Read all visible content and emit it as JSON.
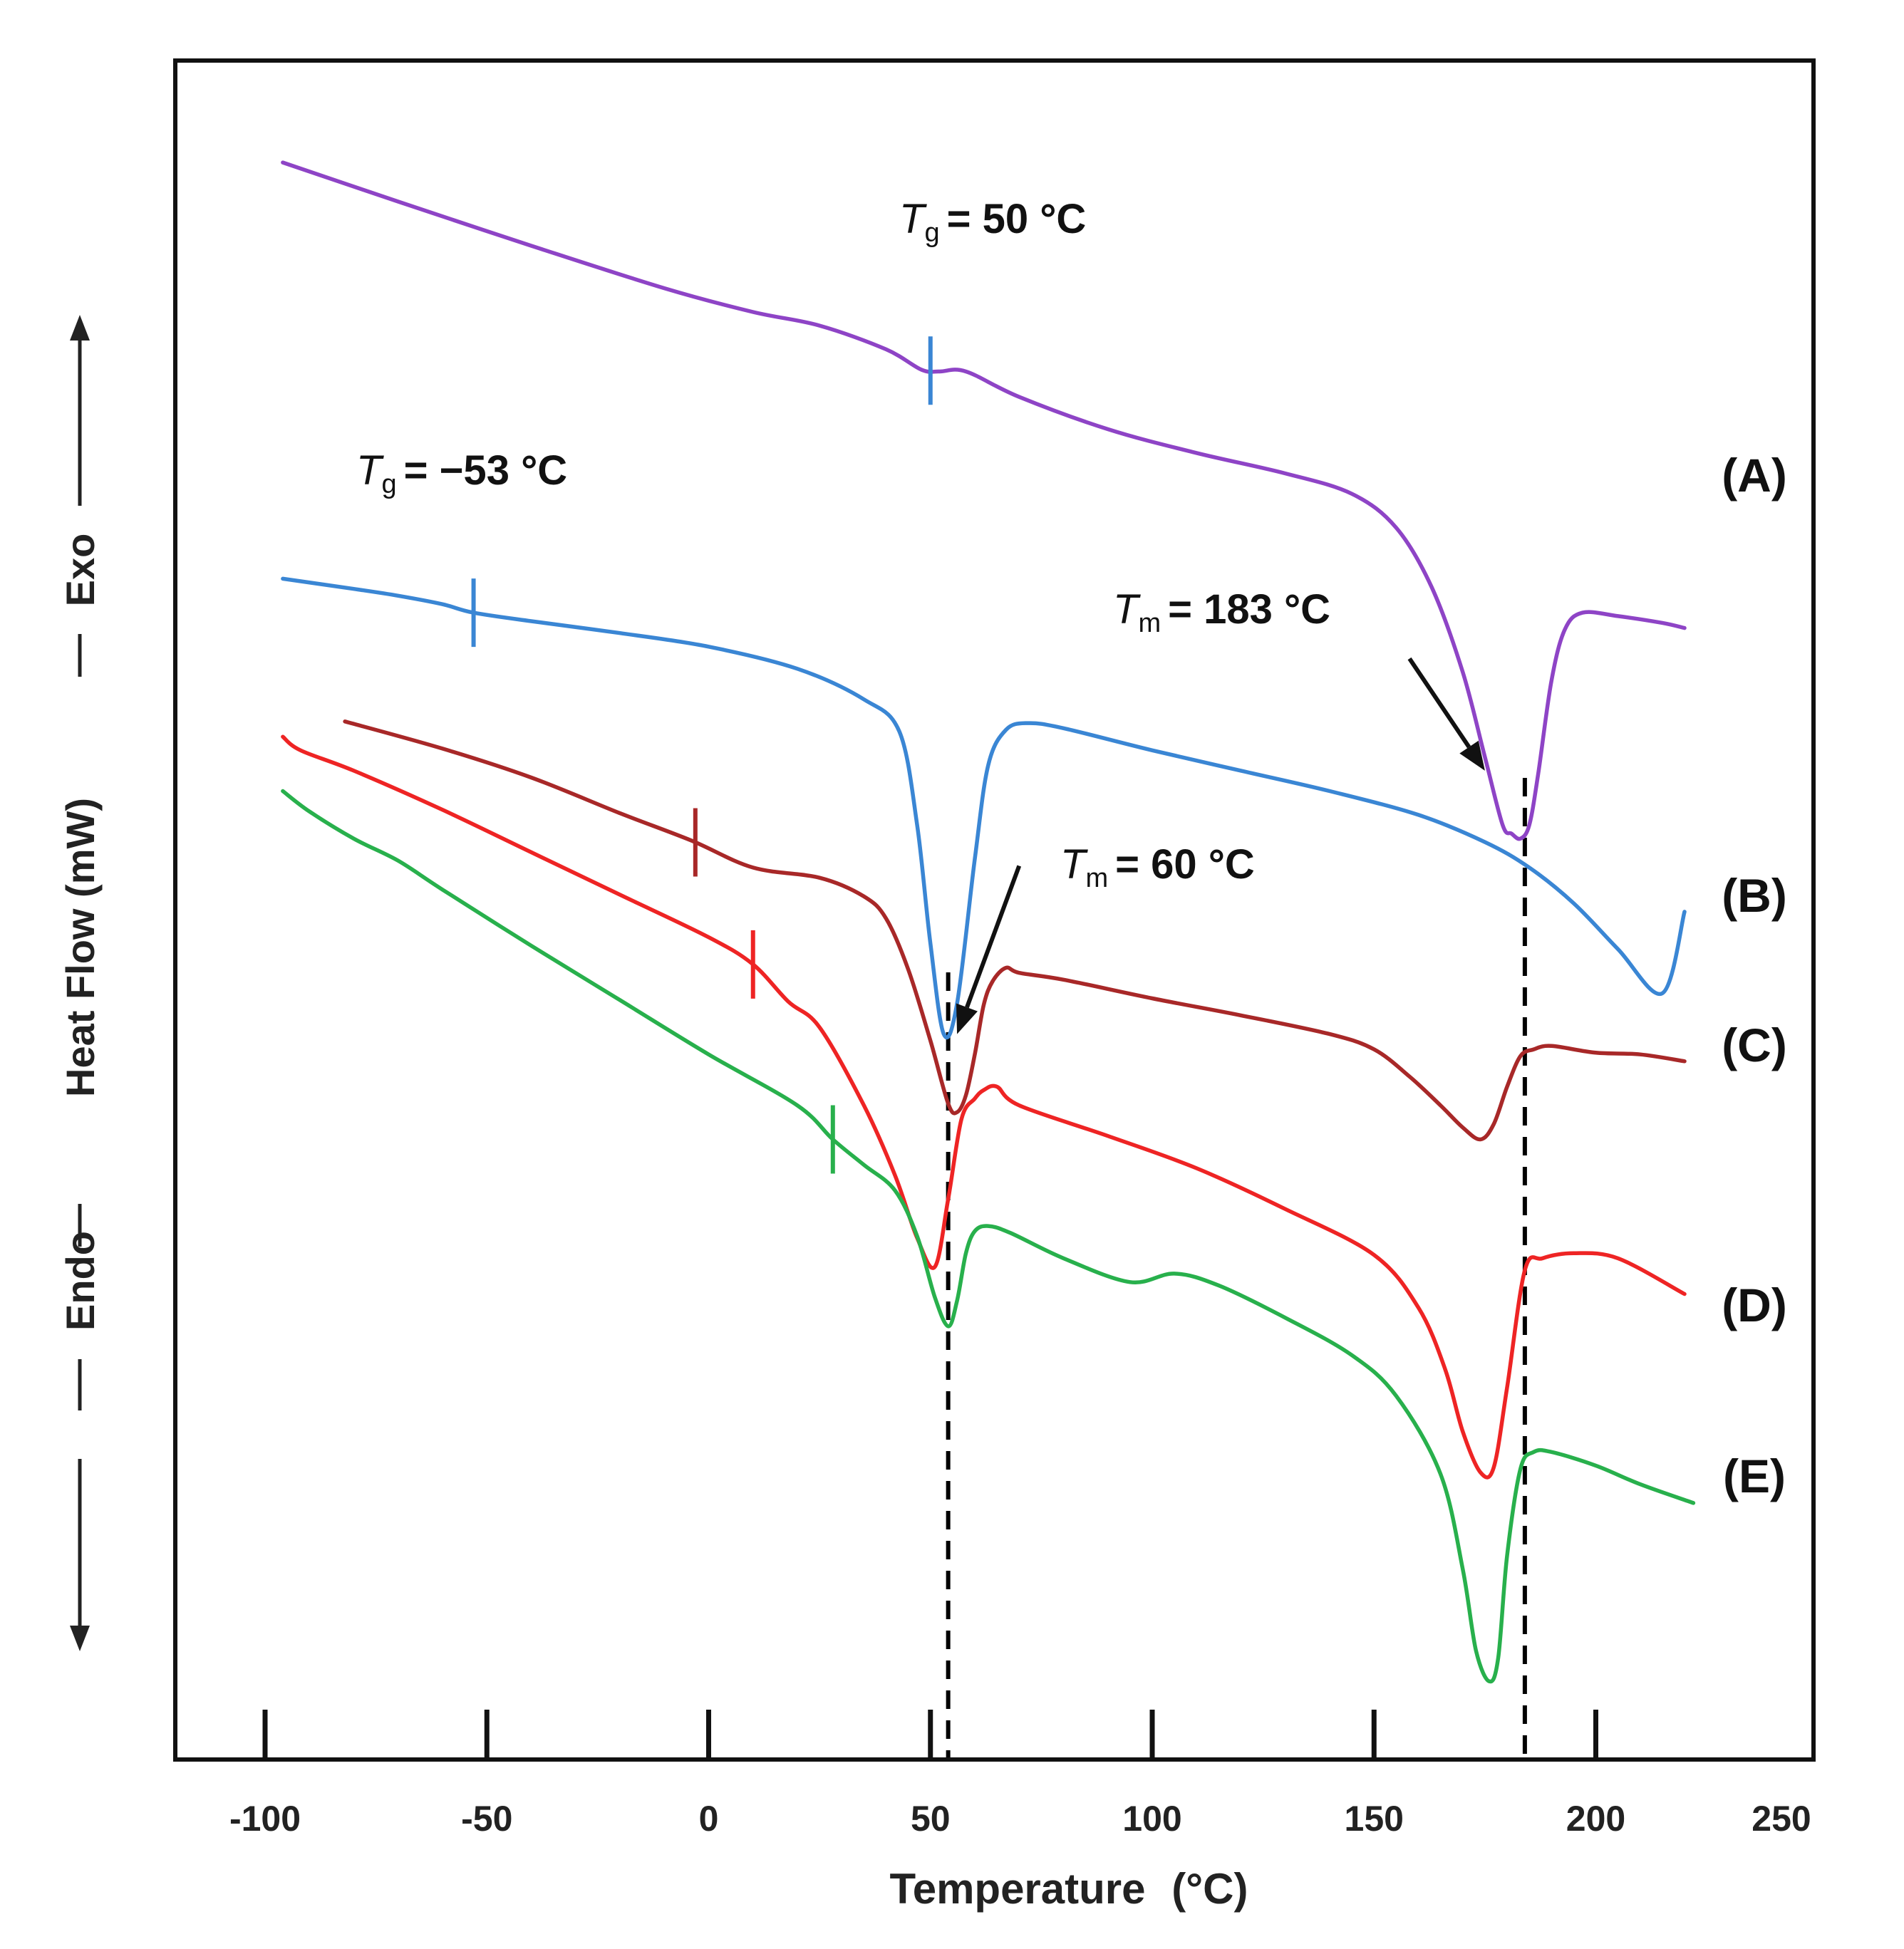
{
  "chart_data": {
    "type": "line",
    "title": "",
    "xlabel": "Temperature",
    "xlabel_unit": "(°C)",
    "ylabel": "Heat Flow (mW)",
    "ylabel_endo": "Endo",
    "ylabel_exo": "Exo",
    "xlim": [
      -120,
      250
    ],
    "xticks": [
      -100,
      -50,
      0,
      50,
      100,
      150,
      200,
      250
    ],
    "ylim": [
      0,
      100
    ],
    "grid": false,
    "y_ticks_shown": false,
    "series": [
      {
        "name": "(A)",
        "color": "#8e44c6",
        "x": [
          -96,
          -70,
          -40,
          -10,
          10,
          25,
          40,
          48,
          52,
          58,
          70,
          90,
          110,
          130,
          145,
          155,
          163,
          170,
          175,
          179,
          181,
          183,
          185,
          187,
          190,
          193,
          197,
          205,
          215,
          220
        ],
        "y": [
          94,
          91.7,
          89.1,
          86.6,
          85.2,
          84.4,
          83,
          81.8,
          81.7,
          81.7,
          80.2,
          78.3,
          76.9,
          75.7,
          74.5,
          72.5,
          69,
          64,
          59,
          55,
          54.5,
          54.2,
          55,
          58,
          63.5,
          66.5,
          67.5,
          67.3,
          66.9,
          66.6
        ],
        "tg": 50,
        "tg_color": "#3a86d4",
        "tg_label": "= 50 °C",
        "tg_symbol": "T",
        "tg_sub": "g"
      },
      {
        "name": "(B)",
        "color": "#3a86d4",
        "x": [
          -96,
          -80,
          -70,
          -60,
          -53,
          -40,
          -20,
          0,
          20,
          35,
          43,
          47,
          50,
          53,
          56,
          60,
          63,
          67,
          72,
          80,
          100,
          120,
          140,
          160,
          175,
          185,
          195,
          205,
          215,
          220
        ],
        "y": [
          69.5,
          68.9,
          68.5,
          68,
          67.5,
          67,
          66.3,
          65.5,
          64.2,
          62.4,
          60.5,
          55,
          48,
          42.7,
          44.5,
          53,
          58.5,
          60.6,
          61,
          60.7,
          59.4,
          58.2,
          57,
          55.6,
          54,
          52.5,
          50.4,
          47.7,
          45.1,
          49.9
        ],
        "tg": -53,
        "tg_color": "#3a86d4",
        "tg_label": "= −53 °C",
        "tg_symbol": "T",
        "tg_sub": "g"
      },
      {
        "name": "(C)",
        "color": "#a82828",
        "x": [
          -82,
          -60,
          -40,
          -20,
          -4,
          10,
          25,
          35,
          40,
          45,
          50,
          54,
          56,
          58,
          60,
          62,
          64,
          67,
          70,
          80,
          100,
          120,
          140,
          150,
          158,
          165,
          170,
          174,
          177,
          180,
          183,
          186,
          190,
          200,
          210,
          220
        ],
        "y": [
          61.1,
          59.5,
          57.8,
          55.7,
          54.1,
          52.5,
          51.9,
          50.8,
          49.5,
          46.5,
          42.3,
          38.6,
          38.1,
          39.1,
          41.5,
          44.4,
          45.8,
          46.6,
          46.3,
          45.9,
          44.8,
          43.8,
          42.7,
          41.8,
          40.2,
          38.5,
          37.2,
          36.5,
          37.4,
          39.6,
          41.4,
          41.8,
          42,
          41.6,
          41.5,
          41.1
        ],
        "tg": -3,
        "tg_color": "#a82828"
      },
      {
        "name": "(D)",
        "color": "#ee2424",
        "x": [
          -96,
          -92,
          -80,
          -60,
          -40,
          -20,
          0,
          10,
          18,
          25,
          35,
          42,
          47,
          51,
          54,
          57,
          60,
          62,
          65,
          70,
          90,
          110,
          130,
          150,
          160,
          166,
          170,
          174,
          177,
          180,
          184,
          188,
          195,
          205,
          220
        ],
        "y": [
          60.2,
          59.4,
          58.2,
          55.9,
          53.4,
          50.9,
          48.4,
          46.8,
          44.6,
          43.1,
          38.5,
          34.4,
          30.7,
          29,
          33,
          37.7,
          38.9,
          39.4,
          39.6,
          38.5,
          36.7,
          34.8,
          32.4,
          29.7,
          26.6,
          23,
          19.3,
          16.9,
          17.2,
          21.9,
          28.8,
          29.5,
          29.8,
          29.5,
          27.4
        ],
        "tg": 10,
        "tg_color": "#ee2424"
      },
      {
        "name": "(E)",
        "color": "#28b04c",
        "x": [
          -96,
          -90,
          -80,
          -70,
          -60,
          -40,
          -20,
          0,
          20,
          28,
          35,
          42,
          47,
          51,
          54,
          56,
          58,
          60,
          63,
          68,
          80,
          95,
          105,
          115,
          130,
          145,
          155,
          165,
          170,
          173,
          176,
          178,
          180,
          183,
          186,
          190,
          200,
          210,
          222
        ],
        "y": [
          57,
          55.8,
          54.2,
          52.9,
          51.2,
          47.9,
          44.7,
          41.5,
          38.5,
          36.5,
          35,
          33.5,
          30.8,
          27.2,
          25.5,
          27,
          29.8,
          31.1,
          31.4,
          31,
          29.5,
          28.1,
          28.6,
          27.9,
          26,
          23.8,
          21.4,
          16.8,
          11.2,
          6.4,
          4.6,
          6,
          12,
          17.1,
          18.1,
          18.1,
          17.3,
          16.2,
          15.1
        ],
        "tg": 28,
        "tg_color": "#28b04c"
      }
    ],
    "reference_lines": [
      {
        "x": 54,
        "style": "dashed",
        "color": "#000000"
      },
      {
        "x": 184,
        "style": "dashed",
        "color": "#000000"
      }
    ],
    "annotations": [
      {
        "id": "tm60",
        "symbol": "T",
        "sub": "m",
        "text": "= 60 °C",
        "arrow_from": [
          70,
          52.6
        ],
        "arrow_to": [
          56,
          42.7
        ]
      },
      {
        "id": "tm183",
        "symbol": "T",
        "sub": "m",
        "text": "= 183 °C",
        "arrow_from": [
          158,
          64.8
        ],
        "arrow_to": [
          175,
          58.2
        ]
      }
    ]
  }
}
